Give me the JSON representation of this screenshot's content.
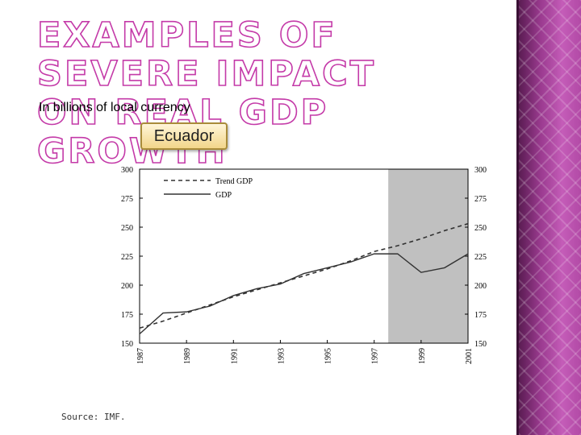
{
  "slide": {
    "title_line1": "EXAMPLES OF SEVERE IMPACT",
    "title_line2": "ON REAL GDP GROWTH",
    "subtitle": "In billions of local currency",
    "country": "Ecuador",
    "source": "Source: IMF."
  },
  "colors": {
    "title_outline": "#c43aa8",
    "shade": "#c0c0c0",
    "series": "#333333",
    "panel": "#8a2a7e"
  },
  "chart_data": {
    "type": "line",
    "title": "Ecuador",
    "ylabel": "In billions of local currency",
    "xlabel": "",
    "ylim": [
      150,
      300
    ],
    "xlim": [
      1987,
      2001
    ],
    "yticks": [
      150,
      175,
      200,
      225,
      250,
      275,
      300
    ],
    "xticks": [
      "1987",
      "1989",
      "1991",
      "1993",
      "1995",
      "1997",
      "1999",
      "2001"
    ],
    "shaded_region": [
      1997.6,
      2001
    ],
    "legend_position": "top-left",
    "series": [
      {
        "name": "Trend GDP",
        "style": "dashed",
        "x": [
          1987,
          1988,
          1989,
          1990,
          1991,
          1992,
          1993,
          1994,
          1995,
          1996,
          1997,
          1998,
          1999,
          2000,
          2001
        ],
        "values": [
          163,
          169,
          176,
          183,
          190,
          196,
          202,
          208,
          214,
          221,
          229,
          234,
          240,
          247,
          253
        ]
      },
      {
        "name": "GDP",
        "style": "solid",
        "x": [
          1987,
          1988,
          1989,
          1990,
          1991,
          1992,
          1993,
          1994,
          1995,
          1996,
          1997,
          1998,
          1999,
          2000,
          2001
        ],
        "values": [
          158,
          176,
          177,
          182,
          191,
          197,
          201,
          210,
          215,
          220,
          227,
          227,
          211,
          215,
          227
        ]
      }
    ]
  }
}
